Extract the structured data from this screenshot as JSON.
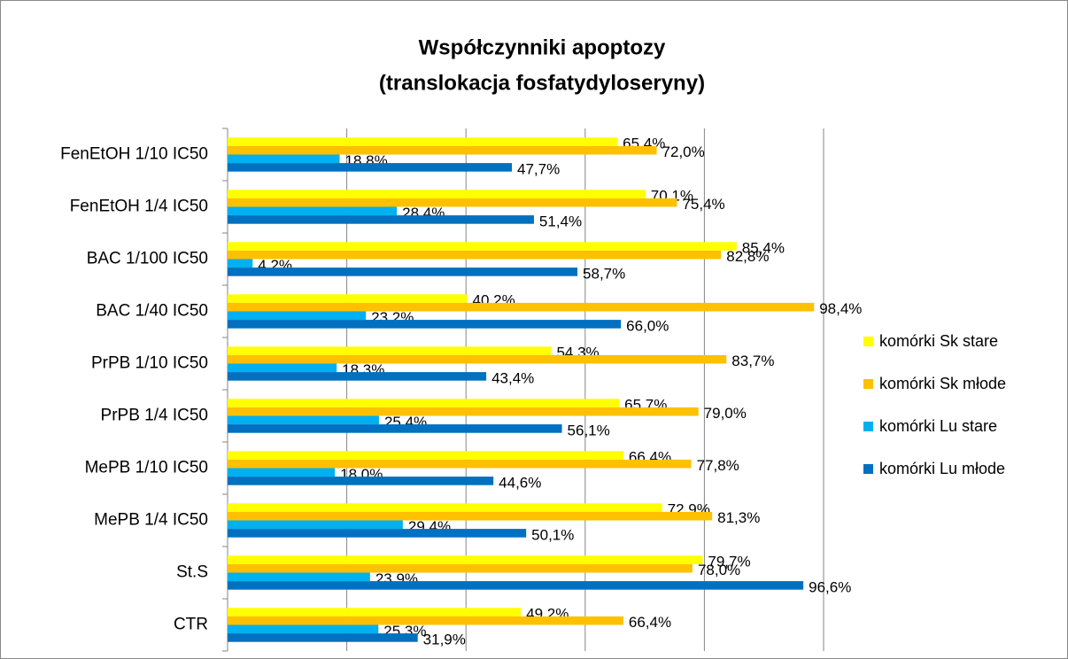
{
  "chart_data": {
    "type": "bar",
    "orientation": "horizontal",
    "title": [
      "Współczynniki apoptozy",
      "(translokacja fosfatydyloseryny)"
    ],
    "categories": [
      "FenEtOH 1/10 IC50",
      "FenEtOH 1/4 IC50",
      "BAC 1/100 IC50",
      "BAC 1/40 IC50",
      "PrPB 1/10 IC50",
      "PrPB 1/4 IC50",
      "MePB 1/10 IC50",
      "MePB 1/4 IC50",
      "St.S",
      "CTR"
    ],
    "series": [
      {
        "name": "komórki Sk stare",
        "color": "#ffff00",
        "values": [
          65.4,
          70.1,
          85.4,
          40.2,
          54.3,
          65.7,
          66.4,
          72.9,
          79.7,
          49.2
        ],
        "value_labels": [
          "65,4%",
          "70,1%",
          "85,4%",
          "40,2%",
          "54,3%",
          "65,7%",
          "66,4%",
          "72,9%",
          "79,7%",
          "49,2%"
        ]
      },
      {
        "name": "komórki Sk młode",
        "color": "#ffc000",
        "values": [
          72.0,
          75.4,
          82.8,
          98.4,
          83.7,
          79.0,
          77.8,
          81.3,
          78.0,
          66.4
        ],
        "value_labels": [
          "72,0%",
          "75,4%",
          "82,8%",
          "98,4%",
          "83,7%",
          "79,0%",
          "77,8%",
          "81,3%",
          "78,0%",
          "66,4%"
        ]
      },
      {
        "name": "komórki Lu stare",
        "color": "#00b0f0",
        "values": [
          18.8,
          28.4,
          4.2,
          23.2,
          18.3,
          25.4,
          18.0,
          29.4,
          23.9,
          25.3
        ],
        "value_labels": [
          "18,8%",
          "28,4%",
          "4,2%",
          "23,2%",
          "18,3%",
          "25,4%",
          "18,0%",
          "29,4%",
          "23,9%",
          "25,3%"
        ]
      },
      {
        "name": "komórki Lu młode",
        "color": "#0070c0",
        "values": [
          47.7,
          51.4,
          58.7,
          66.0,
          43.4,
          56.1,
          44.6,
          50.1,
          96.6,
          31.9
        ],
        "value_labels": [
          "47,7%",
          "51,4%",
          "58,7%",
          "66,0%",
          "43,4%",
          "56,1%",
          "44,6%",
          "50,1%",
          "96,6%",
          "31,9%"
        ]
      }
    ],
    "xlim": [
      0,
      100
    ],
    "xticks": [
      0,
      20,
      40,
      60,
      80,
      100
    ],
    "grid": true,
    "legend": "right"
  }
}
